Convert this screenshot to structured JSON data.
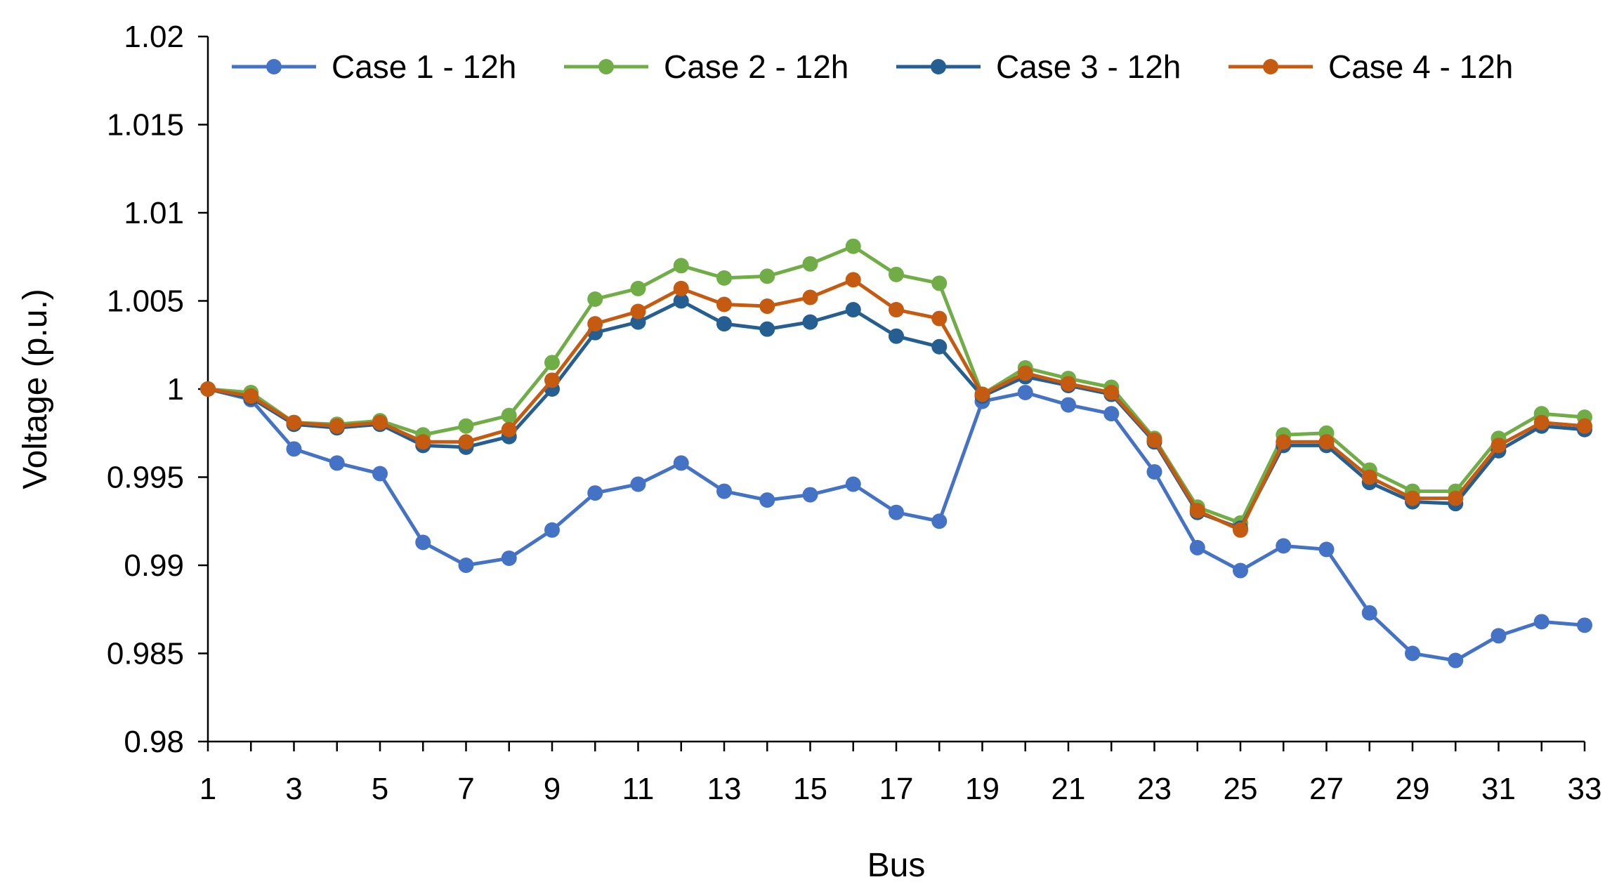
{
  "chart_data": {
    "type": "line",
    "title": "",
    "xlabel": "Bus",
    "ylabel": "Voltage (p.u.)",
    "ylim": [
      0.98,
      1.02
    ],
    "yticks": [
      0.98,
      0.985,
      0.99,
      0.995,
      1,
      1.005,
      1.01,
      1.015,
      1.02
    ],
    "ytick_labels": [
      "0.98",
      "0.985",
      "0.99",
      "0.995",
      "1",
      "1.005",
      "1.01",
      "1.015",
      "1.02"
    ],
    "xlim": [
      1,
      33
    ],
    "xtick_labels": [
      "1",
      "3",
      "5",
      "7",
      "9",
      "11",
      "13",
      "15",
      "17",
      "19",
      "21",
      "23",
      "25",
      "27",
      "29",
      "31",
      "33"
    ],
    "x": [
      1,
      2,
      3,
      4,
      5,
      6,
      7,
      8,
      9,
      10,
      11,
      12,
      13,
      14,
      15,
      16,
      17,
      18,
      19,
      20,
      21,
      22,
      23,
      24,
      25,
      26,
      27,
      28,
      29,
      30,
      31,
      32,
      33
    ],
    "grid": false,
    "legend_position": "top",
    "series": [
      {
        "name": "Case 1 - 12h",
        "color": "#4472C4",
        "values": [
          1.0,
          0.9994,
          0.9966,
          0.9958,
          0.9952,
          0.9913,
          0.99,
          0.9904,
          0.992,
          0.9941,
          0.9946,
          0.9958,
          0.9942,
          0.9937,
          0.994,
          0.9946,
          0.993,
          0.9925,
          0.9993,
          0.9998,
          0.9991,
          0.9986,
          0.9953,
          0.991,
          0.9897,
          0.9911,
          0.9909,
          0.9873,
          0.985,
          0.9846,
          0.986,
          0.9868,
          0.9866
        ]
      },
      {
        "name": "Case 2 - 12h",
        "color": "#70AD47",
        "values": [
          1.0,
          0.9998,
          0.9981,
          0.998,
          0.9982,
          0.9974,
          0.9979,
          0.9985,
          1.0015,
          1.0051,
          1.0057,
          1.007,
          1.0063,
          1.0064,
          1.0071,
          1.0081,
          1.0065,
          1.006,
          0.9997,
          1.0012,
          1.0006,
          1.0001,
          0.9972,
          0.9933,
          0.9924,
          0.9974,
          0.9975,
          0.9954,
          0.9942,
          0.9942,
          0.9972,
          0.9986,
          0.9984
        ]
      },
      {
        "name": "Case 3 - 12h",
        "color": "#255E91",
        "values": [
          1.0,
          0.9995,
          0.998,
          0.9978,
          0.998,
          0.9968,
          0.9967,
          0.9973,
          1.0,
          1.0032,
          1.0038,
          1.005,
          1.0037,
          1.0034,
          1.0038,
          1.0045,
          1.003,
          1.0024,
          0.9996,
          1.0007,
          1.0002,
          0.9997,
          0.997,
          0.993,
          0.9921,
          0.9968,
          0.9968,
          0.9947,
          0.9936,
          0.9935,
          0.9965,
          0.9979,
          0.9977
        ]
      },
      {
        "name": "Case 4 - 12h",
        "color": "#C55A11",
        "values": [
          1.0,
          0.9996,
          0.9981,
          0.9979,
          0.9981,
          0.997,
          0.997,
          0.9977,
          1.0005,
          1.0037,
          1.0044,
          1.0057,
          1.0048,
          1.0047,
          1.0052,
          1.0062,
          1.0045,
          1.004,
          0.9997,
          1.0009,
          1.0003,
          0.9998,
          0.9971,
          0.9931,
          0.992,
          0.997,
          0.997,
          0.995,
          0.9938,
          0.9938,
          0.9968,
          0.9981,
          0.9979
        ]
      }
    ]
  }
}
